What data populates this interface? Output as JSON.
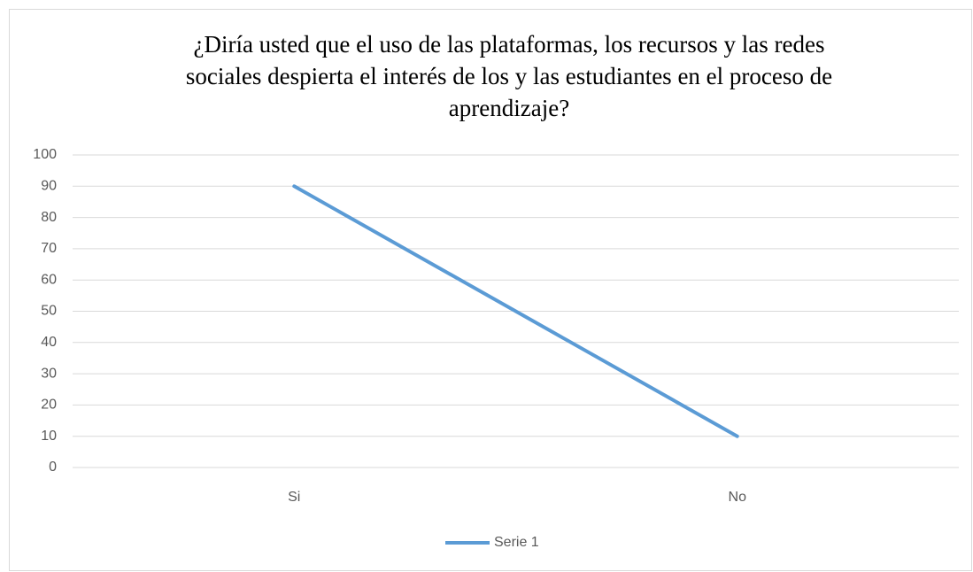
{
  "chart_data": {
    "type": "line",
    "title": "¿Diría usted que el uso de las plataformas, los recursos y las redes\nsociales despierta el interés de los y las estudiantes en el proceso de\naprendizaje?",
    "categories": [
      "Si",
      "No"
    ],
    "series": [
      {
        "name": "Serie 1",
        "color": "#5b9bd5",
        "values": [
          90,
          10
        ]
      }
    ],
    "ylim": [
      0,
      100
    ],
    "yticks": [
      0,
      10,
      20,
      30,
      40,
      50,
      60,
      70,
      80,
      90,
      100
    ],
    "grid": true,
    "legend": "bottom"
  }
}
